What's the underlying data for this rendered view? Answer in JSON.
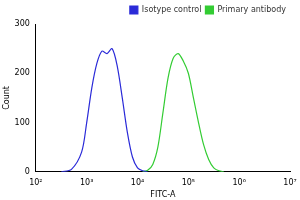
{
  "chart_data": {
    "type": "line",
    "x_label": "FITC-A",
    "y_label": "Count",
    "series": [
      {
        "name": "Isotype control",
        "color": "#2a2ad8",
        "x": [
          316,
          501,
          794,
          1000,
          1259,
          1585,
          1995,
          2512,
          3162,
          3981,
          5012,
          6310,
          7943,
          10000,
          12589,
          15849
        ],
        "values": [
          0,
          5,
          40,
          100,
          170,
          220,
          245,
          240,
          250,
          215,
          150,
          80,
          30,
          8,
          2,
          0
        ]
      },
      {
        "name": "Primary antibody",
        "color": "#33cc33",
        "x": [
          12589,
          15849,
          19953,
          25119,
          31623,
          39811,
          50119,
          63096,
          79433,
          100000,
          125893,
          158489,
          199526,
          251189,
          316228,
          398107,
          501187
        ],
        "values": [
          0,
          3,
          15,
          50,
          120,
          190,
          230,
          240,
          225,
          200,
          150,
          100,
          55,
          25,
          8,
          2,
          0
        ]
      }
    ],
    "log": "x",
    "xlim": [
      100,
      10000000
    ],
    "xticks": [
      {
        "value": 100,
        "label": "10²"
      },
      {
        "value": 1000,
        "label": "10³"
      },
      {
        "value": 10000,
        "label": "10⁴"
      },
      {
        "value": 100000,
        "label": "10⁵"
      },
      {
        "value": 1000000,
        "label": "10⁶"
      },
      {
        "value": 10000000,
        "label": "10⁷"
      }
    ],
    "ylim": [
      0,
      300
    ],
    "yticks": [
      0,
      100,
      200,
      300
    ],
    "grid": false,
    "legend": "upper right"
  }
}
